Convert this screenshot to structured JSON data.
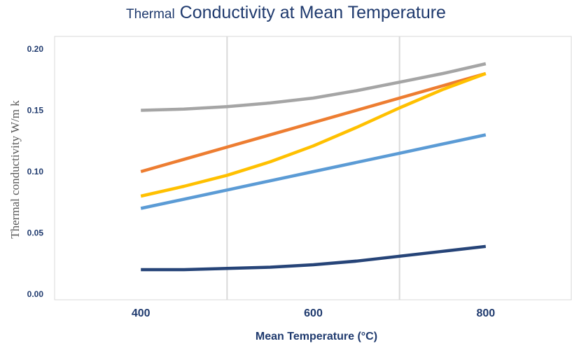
{
  "chart_data": {
    "type": "line",
    "title_prefix": "Thermal",
    "title_rest": " Conductivity at Mean Temperature",
    "xlabel": "Mean Temperature (°C)",
    "ylabel": "Thermal conductivity W/m k",
    "xlim": [
      300,
      900
    ],
    "ylim": [
      0,
      0.2
    ],
    "x_ticks": [
      400,
      600,
      800
    ],
    "x_tick_labels": [
      "400",
      "600",
      "800"
    ],
    "y_ticks": [
      0,
      0.05,
      0.1,
      0.15,
      0.2
    ],
    "y_tick_labels": [
      "0.00",
      "0.05",
      "0.10",
      "0.15",
      "0.20"
    ],
    "grid": "vertical",
    "legend": "none",
    "series": [
      {
        "color": "#a5a5a5",
        "x": [
          400,
          450,
          500,
          550,
          600,
          650,
          700,
          750,
          800
        ],
        "y": [
          0.15,
          0.151,
          0.153,
          0.156,
          0.16,
          0.166,
          0.173,
          0.18,
          0.188
        ]
      },
      {
        "color": "#ed7d31",
        "x": [
          400,
          500,
          600,
          700,
          800
        ],
        "y": [
          0.1,
          0.12,
          0.14,
          0.16,
          0.18
        ]
      },
      {
        "color": "#ffc000",
        "x": [
          400,
          450,
          500,
          550,
          600,
          650,
          700,
          750,
          800
        ],
        "y": [
          0.08,
          0.088,
          0.097,
          0.108,
          0.121,
          0.136,
          0.152,
          0.167,
          0.18
        ]
      },
      {
        "color": "#5b9bd5",
        "x": [
          400,
          500,
          600,
          700,
          800
        ],
        "y": [
          0.07,
          0.085,
          0.1,
          0.115,
          0.13
        ]
      },
      {
        "color": "#264478",
        "x": [
          400,
          450,
          500,
          550,
          600,
          650,
          700,
          750,
          800
        ],
        "y": [
          0.02,
          0.02,
          0.021,
          0.022,
          0.024,
          0.027,
          0.031,
          0.035,
          0.039
        ]
      }
    ]
  }
}
